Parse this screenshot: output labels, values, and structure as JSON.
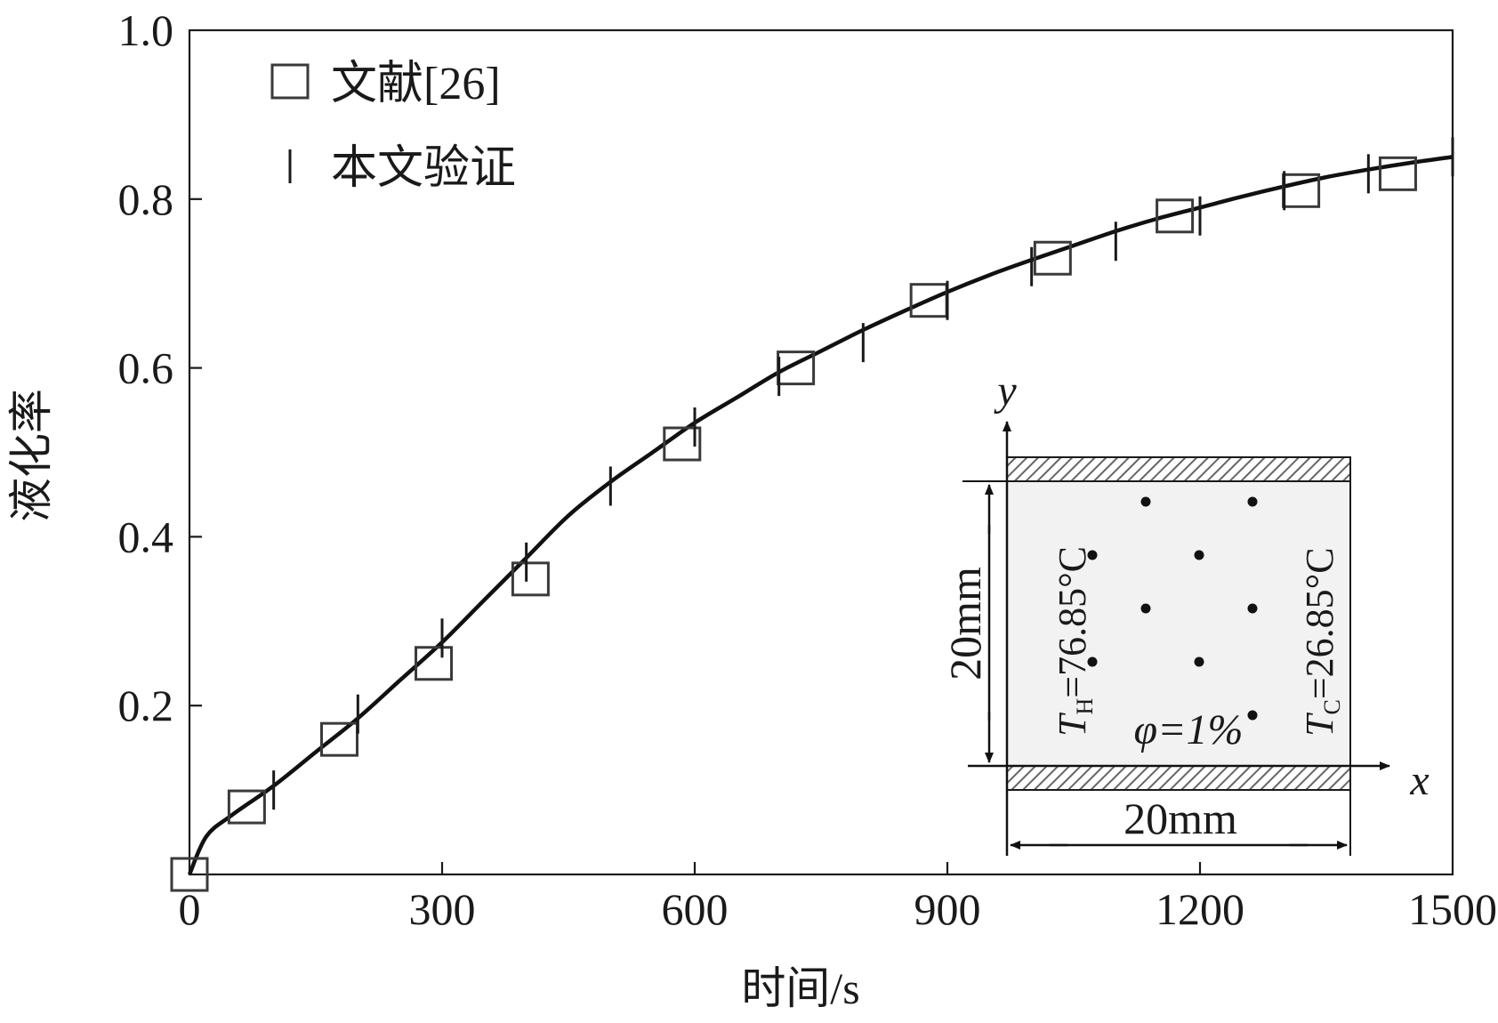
{
  "chart_data": {
    "type": "scatter",
    "xlabel": "时间/s",
    "ylabel": "液化率",
    "xlim": [
      0,
      1500
    ],
    "ylim": [
      0,
      1.0
    ],
    "x_ticks": [
      0,
      300,
      600,
      900,
      1200,
      1500
    ],
    "x_tick_labels": [
      "0",
      "300",
      "600",
      "900",
      "1200",
      "1500"
    ],
    "y_ticks": [
      0.2,
      0.4,
      0.6,
      0.8,
      1.0
    ],
    "y_tick_labels": [
      "0.2",
      "0.4",
      "0.6",
      "0.8",
      "1.0"
    ],
    "grid": false,
    "legend_position": "top-left",
    "series": [
      {
        "name": "文献[26]",
        "marker": "square",
        "color": "#3a3a3a",
        "x": [
          0,
          68,
          178,
          290,
          405,
          585,
          720,
          878,
          1025,
          1170,
          1320,
          1435
        ],
        "y": [
          0.0,
          0.08,
          0.16,
          0.25,
          0.35,
          0.51,
          0.6,
          0.68,
          0.73,
          0.78,
          0.81,
          0.83
        ]
      },
      {
        "name": "本文验证",
        "marker": "vline",
        "color": "#1a1a1a",
        "x": [
          100,
          200,
          300,
          400,
          500,
          600,
          700,
          800,
          900,
          1000,
          1100,
          1200,
          1300,
          1400,
          1500
        ],
        "y": [
          0.1,
          0.19,
          0.28,
          0.37,
          0.46,
          0.53,
          0.59,
          0.63,
          0.68,
          0.72,
          0.75,
          0.78,
          0.81,
          0.83,
          0.85
        ]
      }
    ],
    "curve": {
      "color": "#111111",
      "x": [
        0,
        20,
        50,
        100,
        150,
        200,
        250,
        300,
        350,
        400,
        450,
        500,
        550,
        600,
        650,
        700,
        750,
        800,
        850,
        900,
        950,
        1000,
        1050,
        1100,
        1150,
        1200,
        1250,
        1300,
        1350,
        1400,
        1450,
        1500
      ],
      "y": [
        0.0,
        0.045,
        0.07,
        0.105,
        0.145,
        0.185,
        0.23,
        0.275,
        0.325,
        0.375,
        0.425,
        0.465,
        0.5,
        0.535,
        0.565,
        0.595,
        0.62,
        0.645,
        0.668,
        0.69,
        0.71,
        0.728,
        0.745,
        0.762,
        0.777,
        0.79,
        0.803,
        0.815,
        0.826,
        0.835,
        0.843,
        0.85
      ]
    },
    "inset": {
      "axis_x": "x",
      "axis_y": "y",
      "width_label": "20mm",
      "height_label": "20mm",
      "hot_wall": {
        "T": "T",
        "sub": "H",
        "value": "=76.85°C"
      },
      "cold_wall": {
        "T": "T",
        "sub": "C",
        "value": "=26.85°C"
      },
      "volume_fraction": "φ=1%",
      "colors": {
        "background": "#f2f2f2",
        "hatch": "#6a6a6a",
        "dots": "#111111"
      }
    }
  }
}
